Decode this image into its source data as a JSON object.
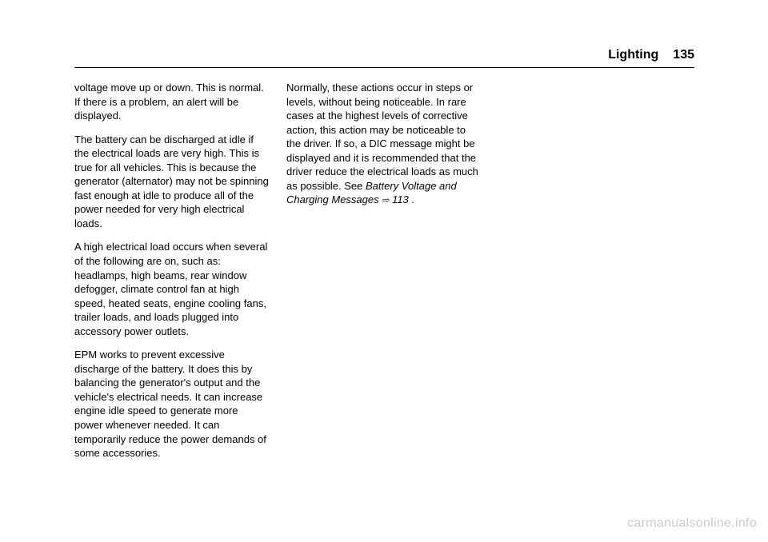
{
  "header": {
    "section": "Lighting",
    "page_number": "135"
  },
  "columns": {
    "col1": {
      "p1": "voltage move up or down. This is normal. If there is a problem, an alert will be displayed.",
      "p2": "The battery can be discharged at idle if the electrical loads are very high. This is true for all vehicles. This is because the generator (alternator) may not be spinning fast enough at idle to produce all of the power needed for very high electrical loads.",
      "p3": "A high electrical load occurs when several of the following are on, such as: headlamps, high beams, rear window defogger, climate control fan at high speed, heated seats, engine cooling fans, trailer loads, and loads plugged into accessory power outlets.",
      "p4": "EPM works to prevent excessive discharge of the battery. It does this by balancing the generator's output and the vehicle's electrical needs. It can increase engine idle speed to generate more power whenever needed. It can temporarily reduce the power demands of some accessories."
    },
    "col2": {
      "p1_text": "Normally, these actions occur in steps or levels, without being noticeable. In rare cases at the highest levels of corrective action, this action may be noticeable to the driver. If so, a DIC message might be displayed and it is recommended that the driver reduce the electrical loads as much as possible. See ",
      "p1_ref": "Battery Voltage and Charging Messages ",
      "p1_icon": "⇨",
      "p1_pageref": " 113",
      "p1_end": " ."
    }
  },
  "watermark": "carmanualsonline.info"
}
